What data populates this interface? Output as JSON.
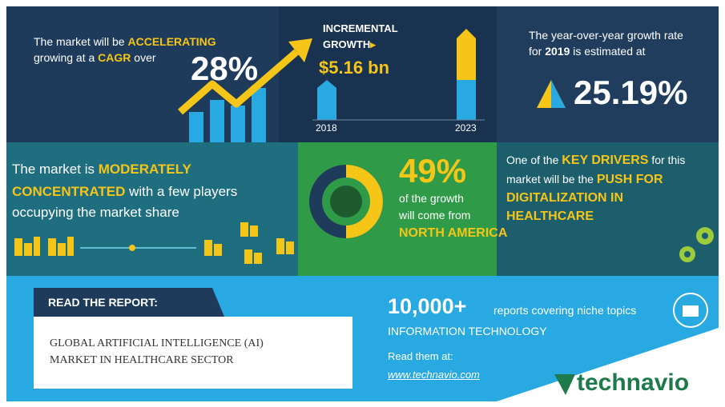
{
  "cagr_panel": {
    "lead": "The market will be",
    "accent": "ACCELERATING",
    "line2_start": "growing at a",
    "line2_accent": "CAGR",
    "line2_end": "over",
    "value": "28%"
  },
  "growth_panel": {
    "title_line1": "INCREMENTAL",
    "title_line2": "GROWTH",
    "value": "$5.16 bn",
    "start_year": "2018",
    "end_year": "2023"
  },
  "yoy_panel": {
    "line1": "The year-over-year growth rate",
    "line2_start": "for",
    "line2_accent": "2019",
    "line2_end": "is estimated at",
    "value": "25.19%"
  },
  "concentration_panel": {
    "lead": "The market is",
    "accent": "MODERATELY",
    "accent2": "CONCENTRATED",
    "line2_end": "with a few players",
    "line3": "occupying the market share"
  },
  "region_panel": {
    "value": "49%",
    "line1": "of the growth",
    "line2": "will come from",
    "region": "NORTH AMERICA"
  },
  "drivers_panel": {
    "lead": "One of the",
    "accent": "KEY DRIVERS",
    "line1_end": "for this",
    "line2": "market will be the",
    "accent2_line1": "PUSH FOR",
    "accent2_line2": "DIGITALIZATION IN",
    "accent2_line3": "HEALTHCARE"
  },
  "report": {
    "banner": "READ THE REPORT:",
    "title_line1": "GLOBAL ARTIFICIAL INTELLIGENCE (AI)",
    "title_line2": "MARKET IN HEALTHCARE SECTOR"
  },
  "library": {
    "count": "10,000+",
    "count_text": "reports covering niche topics",
    "topic": "INFORMATION TECHNOLOGY",
    "read_at": "Read them at:",
    "url": "www.technavio.com"
  },
  "brand": {
    "logo": "technavio"
  }
}
